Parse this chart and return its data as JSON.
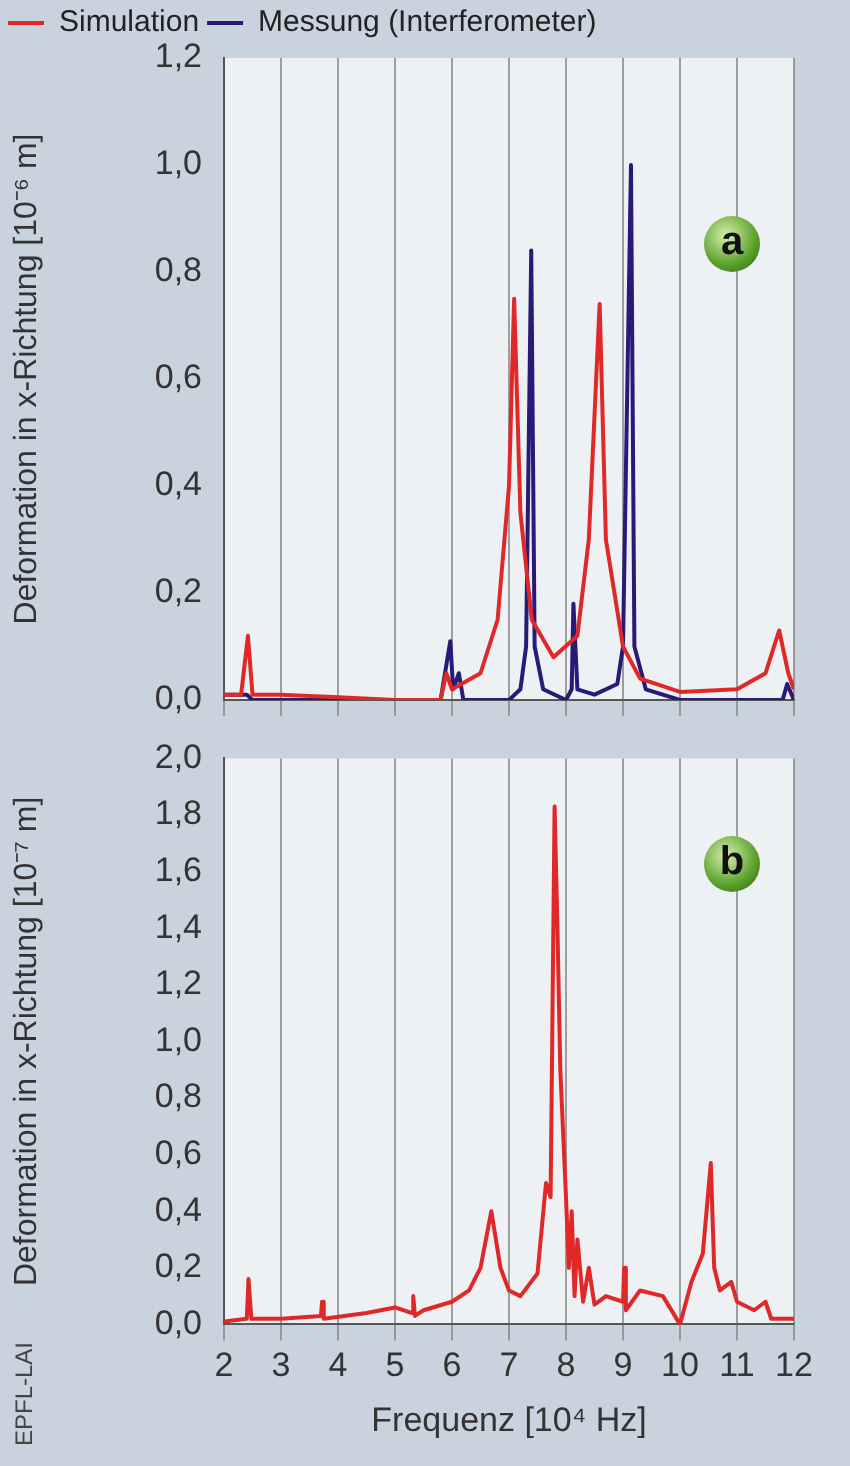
{
  "chart_data": [
    {
      "type": "line",
      "ylabel": "Deformation in x-Richtung [10⁻⁶ m]",
      "annotations": [
        "a"
      ],
      "legend": "top left",
      "grid": "x",
      "tick_labels": "y",
      "xlim": [
        2,
        12
      ],
      "xticks": [
        2,
        3,
        4,
        5,
        6,
        7,
        8,
        9,
        10,
        11,
        12
      ],
      "ylim": [
        0,
        1.2
      ],
      "yticks": [
        {
          "value": 0,
          "label": "0,0"
        },
        {
          "value": 0.2,
          "label": "0,2"
        },
        {
          "value": 0.4,
          "label": "0,4"
        },
        {
          "value": 0.6,
          "label": "0,6"
        },
        {
          "value": 0.8,
          "label": "0,8"
        },
        {
          "value": 1.0,
          "label": "1,0"
        },
        {
          "value": 1.2,
          "label": "1,2"
        }
      ],
      "series": [
        {
          "name": "Simulation",
          "color": "#e02828",
          "x": [
            2.0,
            2.3,
            2.42,
            2.5,
            3,
            4,
            5,
            5.8,
            5.9,
            6.0,
            6.5,
            6.8,
            7.0,
            7.09,
            7.2,
            7.4,
            7.78,
            8.2,
            8.4,
            8.59,
            8.7,
            9.0,
            9.3,
            10,
            11,
            11.5,
            11.74,
            11.9,
            12
          ],
          "values": [
            0.01,
            0.01,
            0.12,
            0.01,
            0.01,
            0.005,
            0.0,
            0.0,
            0.05,
            0.02,
            0.05,
            0.15,
            0.4,
            0.75,
            0.35,
            0.15,
            0.08,
            0.12,
            0.3,
            0.74,
            0.3,
            0.1,
            0.04,
            0.015,
            0.02,
            0.05,
            0.13,
            0.05,
            0.02
          ]
        },
        {
          "name": "Messung (Interferometer)",
          "color": "#2a1a78",
          "x": [
            2.0,
            2.4,
            2.5,
            5.8,
            5.97,
            6.02,
            6.12,
            6.2,
            7.0,
            7.2,
            7.3,
            7.39,
            7.45,
            7.6,
            8.0,
            8.1,
            8.13,
            8.2,
            8.5,
            8.9,
            9.0,
            9.14,
            9.2,
            9.4,
            10,
            11.8,
            11.88,
            12
          ],
          "values": [
            0.01,
            0.01,
            0.0,
            0.0,
            0.11,
            0.02,
            0.05,
            0.0,
            0.0,
            0.02,
            0.1,
            0.84,
            0.1,
            0.02,
            0.0,
            0.02,
            0.18,
            0.02,
            0.01,
            0.03,
            0.1,
            1.0,
            0.1,
            0.02,
            0.0,
            0.0,
            0.03,
            0.0
          ]
        }
      ]
    },
    {
      "type": "line",
      "xlabel": "Frequenz [10⁴ Hz]",
      "ylabel": "Deformation in x-Richtung [10⁻⁷ m]",
      "annotations": [
        "b",
        "EPFL-LAI"
      ],
      "grid": "x",
      "xlim": [
        2,
        12
      ],
      "xticks": [
        2,
        3,
        4,
        5,
        6,
        7,
        8,
        9,
        10,
        11,
        12
      ],
      "ylim": [
        0,
        2.0
      ],
      "yticks": [
        {
          "value": 0,
          "label": "0,0"
        },
        {
          "value": 0.2,
          "label": "0,2"
        },
        {
          "value": 0.4,
          "label": "0,4"
        },
        {
          "value": 0.6,
          "label": "0,6"
        },
        {
          "value": 0.8,
          "label": "0,8"
        },
        {
          "value": 1.0,
          "label": "1,0"
        },
        {
          "value": 1.2,
          "label": "1,2"
        },
        {
          "value": 1.4,
          "label": "1,4"
        },
        {
          "value": 1.6,
          "label": "1,6"
        },
        {
          "value": 1.8,
          "label": "1,8"
        },
        {
          "value": 2.0,
          "label": "2,0"
        }
      ],
      "series": [
        {
          "color": "#e02828",
          "x": [
            2.0,
            2.4,
            2.43,
            2.48,
            3.0,
            3.7,
            3.72,
            3.75,
            4.5,
            5.0,
            5.3,
            5.32,
            5.35,
            5.5,
            6.0,
            6.3,
            6.5,
            6.69,
            6.85,
            7.0,
            7.2,
            7.5,
            7.65,
            7.73,
            7.8,
            7.85,
            7.9,
            8.0,
            8.05,
            8.1,
            8.15,
            8.2,
            8.3,
            8.4,
            8.5,
            8.7,
            9.0,
            9.02,
            9.05,
            9.3,
            9.7,
            10.0,
            10.2,
            10.4,
            10.54,
            10.6,
            10.7,
            10.9,
            11.0,
            11.3,
            11.5,
            11.6,
            12
          ],
          "values": [
            0.01,
            0.02,
            0.16,
            0.02,
            0.02,
            0.03,
            0.08,
            0.02,
            0.04,
            0.06,
            0.04,
            0.1,
            0.03,
            0.05,
            0.08,
            0.12,
            0.2,
            0.4,
            0.2,
            0.12,
            0.1,
            0.18,
            0.5,
            0.45,
            1.83,
            1.4,
            0.9,
            0.45,
            0.2,
            0.4,
            0.1,
            0.3,
            0.08,
            0.2,
            0.07,
            0.1,
            0.08,
            0.2,
            0.05,
            0.12,
            0.1,
            0.0,
            0.15,
            0.25,
            0.57,
            0.2,
            0.12,
            0.15,
            0.08,
            0.05,
            0.08,
            0.02,
            0.02
          ]
        }
      ]
    }
  ]
}
